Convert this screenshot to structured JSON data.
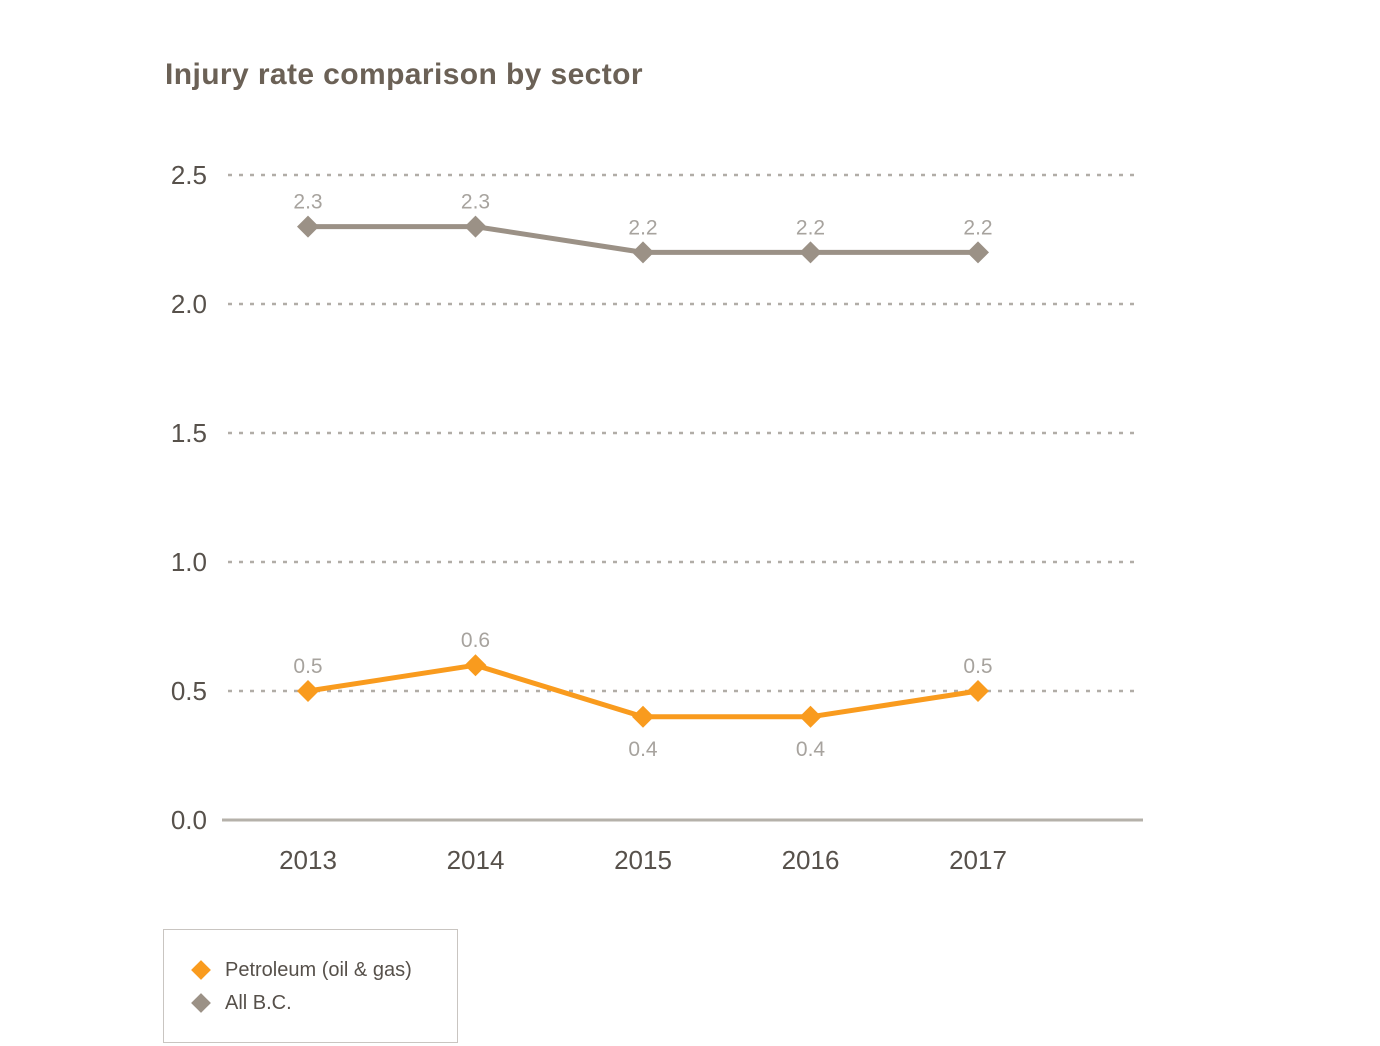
{
  "title": "Injury rate comparison by sector",
  "chart_data": {
    "type": "line",
    "title": "Injury rate comparison by sector",
    "x_labels": [
      "2013",
      "2014",
      "2015",
      "2016",
      "2017"
    ],
    "series": [
      {
        "id": "all-bc",
        "name": "All B.C.",
        "color": "#9B9186",
        "values": [
          2.3,
          2.3,
          2.2,
          2.2,
          2.2
        ],
        "label_placement": [
          "above",
          "above",
          "above",
          "above",
          "above"
        ]
      },
      {
        "id": "petroleum",
        "name": "Petroleum (oil & gas)",
        "color": "#F99B1E",
        "values": [
          0.5,
          0.6,
          0.4,
          0.4,
          0.5
        ],
        "label_placement": [
          "above",
          "above",
          "below",
          "below",
          "above"
        ]
      }
    ],
    "ylim": [
      0,
      2.5
    ],
    "yticks": [
      0,
      0.5,
      1,
      1.5,
      2,
      2.5
    ],
    "ytick_labels": [
      "0.0",
      "0.5",
      "1.0",
      "1.5",
      "2.0",
      "2.5"
    ],
    "xlabel": "",
    "ylabel": "",
    "grid": "horizontal-dashed",
    "legend_position": "bottom-left"
  },
  "legend": {
    "items": [
      {
        "label": "Petroleum (oil & gas)",
        "color": "#F99B1E"
      },
      {
        "label": "All B.C.",
        "color": "#9B9186"
      }
    ]
  },
  "colors": {
    "accent_orange": "#F99B1E",
    "series_gray": "#9B9186",
    "grid": "#B1ADA7",
    "axis": "#B5B1AA",
    "tick_label": "#57514B",
    "data_label": "#A7A39E",
    "title": "#6B6156",
    "legend_border": "#C9C5C1",
    "legend_text": "#56504A"
  }
}
